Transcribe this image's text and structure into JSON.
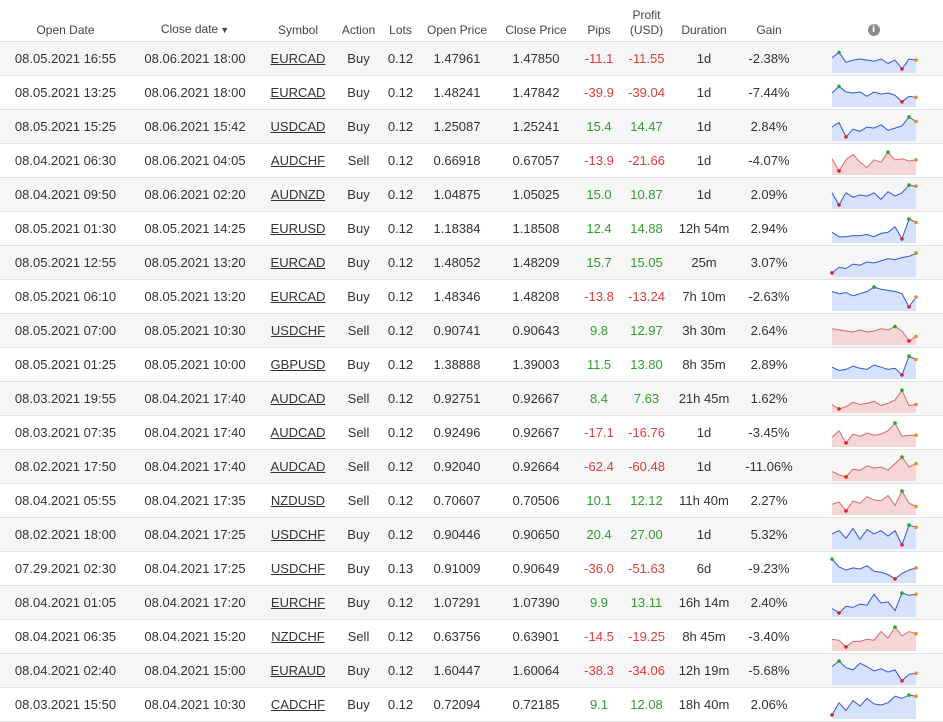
{
  "columns": {
    "open_date": "Open Date",
    "close_date": "Close date",
    "sort_indicator": "▼",
    "symbol": "Symbol",
    "action": "Action",
    "lots": "Lots",
    "open_price": "Open Price",
    "close_price": "Close Price",
    "pips": "Pips",
    "profit_line1": "Profit",
    "profit_line2": "(USD)",
    "duration": "Duration",
    "gain": "Gain",
    "info_glyph": "i"
  },
  "colors": {
    "positive": "#2f9e2f",
    "negative": "#e03b3b",
    "buy_fill": "#d6e1fb",
    "buy_line": "#3355dd",
    "sell_fill": "#f5d6d6",
    "sell_line": "#d96a6a",
    "high_dot": "#22aa22",
    "low_dot": "#dd2222",
    "last_dot": "#f08a24"
  },
  "trades": [
    {
      "open": "08.05.2021 16:55",
      "close": "08.06.2021 18:00",
      "symbol": "EURCAD",
      "action": "Buy",
      "lots": "0.12",
      "open_price": "1.47961",
      "close_price": "1.47850",
      "pips": "-11.1",
      "profit": "-11.55",
      "duration": "1d",
      "gain": "-2.38%",
      "spark": [
        0.55,
        0.8,
        0.35,
        0.45,
        0.5,
        0.45,
        0.4,
        0.5,
        0.3,
        0.45,
        0.05,
        0.5,
        0.45
      ]
    },
    {
      "open": "08.05.2021 13:25",
      "close": "08.06.2021 18:00",
      "symbol": "EURCAD",
      "action": "Buy",
      "lots": "0.12",
      "open_price": "1.48241",
      "close_price": "1.47842",
      "pips": "-39.9",
      "profit": "-39.04",
      "duration": "1d",
      "gain": "-7.44%",
      "spark": [
        0.5,
        0.8,
        0.55,
        0.5,
        0.55,
        0.35,
        0.55,
        0.45,
        0.5,
        0.4,
        0.1,
        0.35,
        0.3
      ]
    },
    {
      "open": "08.05.2021 15:25",
      "close": "08.06.2021 15:42",
      "symbol": "USDCAD",
      "action": "Buy",
      "lots": "0.12",
      "open_price": "1.25087",
      "close_price": "1.25241",
      "pips": "15.4",
      "profit": "14.47",
      "duration": "1d",
      "gain": "2.84%",
      "spark": [
        0.5,
        0.7,
        0.05,
        0.4,
        0.3,
        0.5,
        0.45,
        0.6,
        0.35,
        0.45,
        0.55,
        0.95,
        0.75
      ]
    },
    {
      "open": "08.04.2021 06:30",
      "close": "08.06.2021 04:05",
      "symbol": "AUDCHF",
      "action": "Sell",
      "lots": "0.12",
      "open_price": "0.66918",
      "close_price": "0.67057",
      "pips": "-13.9",
      "profit": "-21.66",
      "duration": "1d",
      "gain": "-4.07%",
      "spark": [
        0.6,
        0.05,
        0.55,
        0.8,
        0.45,
        0.2,
        0.55,
        0.45,
        0.9,
        0.55,
        0.6,
        0.5,
        0.55
      ]
    },
    {
      "open": "08.04.2021 09:50",
      "close": "08.06.2021 02:20",
      "symbol": "AUDNZD",
      "action": "Buy",
      "lots": "0.12",
      "open_price": "1.04875",
      "close_price": "1.05025",
      "pips": "15.0",
      "profit": "10.87",
      "duration": "1d",
      "gain": "2.09%",
      "spark": [
        0.6,
        0.05,
        0.6,
        0.4,
        0.5,
        0.45,
        0.6,
        0.3,
        0.65,
        0.45,
        0.6,
        0.95,
        0.9
      ]
    },
    {
      "open": "08.05.2021 01:30",
      "close": "08.05.2021 14:25",
      "symbol": "EURUSD",
      "action": "Buy",
      "lots": "0.12",
      "open_price": "1.18384",
      "close_price": "1.18508",
      "pips": "12.4",
      "profit": "14.88",
      "duration": "12h 54m",
      "gain": "2.94%",
      "spark": [
        0.35,
        0.15,
        0.15,
        0.2,
        0.2,
        0.25,
        0.15,
        0.3,
        0.35,
        0.6,
        0.05,
        0.95,
        0.8
      ]
    },
    {
      "open": "08.05.2021 12:55",
      "close": "08.05.2021 13:20",
      "symbol": "EURCAD",
      "action": "Buy",
      "lots": "0.12",
      "open_price": "1.48052",
      "close_price": "1.48209",
      "pips": "15.7",
      "profit": "15.05",
      "duration": "25m",
      "gain": "3.07%",
      "spark": [
        0.05,
        0.3,
        0.25,
        0.45,
        0.4,
        0.55,
        0.5,
        0.6,
        0.7,
        0.65,
        0.75,
        0.8,
        0.95
      ]
    },
    {
      "open": "08.05.2021 06:10",
      "close": "08.05.2021 13:20",
      "symbol": "EURCAD",
      "action": "Buy",
      "lots": "0.12",
      "open_price": "1.48346",
      "close_price": "1.48208",
      "pips": "-13.8",
      "profit": "-13.24",
      "duration": "7h 10m",
      "gain": "-2.63%",
      "spark": [
        0.75,
        0.65,
        0.7,
        0.55,
        0.65,
        0.75,
        0.95,
        0.85,
        0.8,
        0.75,
        0.65,
        0.05,
        0.5
      ]
    },
    {
      "open": "08.05.2021 07:00",
      "close": "08.05.2021 10:30",
      "symbol": "USDCHF",
      "action": "Sell",
      "lots": "0.12",
      "open_price": "0.90741",
      "close_price": "0.90643",
      "pips": "9.8",
      "profit": "12.97",
      "duration": "3h 30m",
      "gain": "2.64%",
      "spark": [
        0.6,
        0.55,
        0.5,
        0.45,
        0.55,
        0.45,
        0.5,
        0.6,
        0.55,
        0.7,
        0.5,
        0.05,
        0.25
      ]
    },
    {
      "open": "08.05.2021 01:25",
      "close": "08.05.2021 10:00",
      "symbol": "GBPUSD",
      "action": "Buy",
      "lots": "0.12",
      "open_price": "1.38888",
      "close_price": "1.39003",
      "pips": "11.5",
      "profit": "13.80",
      "duration": "8h 35m",
      "gain": "2.89%",
      "spark": [
        0.4,
        0.25,
        0.3,
        0.45,
        0.35,
        0.3,
        0.5,
        0.4,
        0.3,
        0.35,
        0.05,
        0.9,
        0.75
      ]
    },
    {
      "open": "08.03.2021 19:55",
      "close": "08.04.2021 17:40",
      "symbol": "AUDCAD",
      "action": "Sell",
      "lots": "0.12",
      "open_price": "0.92751",
      "close_price": "0.92667",
      "pips": "8.4",
      "profit": "7.63",
      "duration": "21h 45m",
      "gain": "1.62%",
      "spark": [
        0.25,
        0.05,
        0.15,
        0.35,
        0.25,
        0.3,
        0.4,
        0.2,
        0.3,
        0.45,
        0.9,
        0.2,
        0.25
      ]
    },
    {
      "open": "08.03.2021 07:35",
      "close": "08.04.2021 17:40",
      "symbol": "AUDCAD",
      "action": "Sell",
      "lots": "0.12",
      "open_price": "0.92496",
      "close_price": "0.92667",
      "pips": "-17.1",
      "profit": "-16.76",
      "duration": "1d",
      "gain": "-3.45%",
      "spark": [
        0.3,
        0.6,
        0.05,
        0.45,
        0.35,
        0.5,
        0.4,
        0.45,
        0.6,
        0.95,
        0.35,
        0.4,
        0.4
      ]
    },
    {
      "open": "08.02.2021 17:50",
      "close": "08.04.2021 17:40",
      "symbol": "AUDCAD",
      "action": "Sell",
      "lots": "0.12",
      "open_price": "0.92040",
      "close_price": "0.92664",
      "pips": "-62.4",
      "profit": "-60.48",
      "duration": "1d",
      "gain": "-11.06%",
      "spark": [
        0.3,
        0.15,
        0.05,
        0.4,
        0.35,
        0.55,
        0.45,
        0.5,
        0.35,
        0.65,
        0.95,
        0.5,
        0.65
      ]
    },
    {
      "open": "08.04.2021 05:55",
      "close": "08.04.2021 17:35",
      "symbol": "NZDUSD",
      "action": "Sell",
      "lots": "0.12",
      "open_price": "0.70607",
      "close_price": "0.70506",
      "pips": "10.1",
      "profit": "12.12",
      "duration": "11h 40m",
      "gain": "2.27%",
      "spark": [
        0.35,
        0.45,
        0.05,
        0.5,
        0.4,
        0.7,
        0.55,
        0.5,
        0.75,
        0.3,
        0.95,
        0.4,
        0.25
      ]
    },
    {
      "open": "08.02.2021 18:00",
      "close": "08.04.2021 17:25",
      "symbol": "USDCHF",
      "action": "Buy",
      "lots": "0.12",
      "open_price": "0.90446",
      "close_price": "0.90650",
      "pips": "20.4",
      "profit": "27.00",
      "duration": "1d",
      "gain": "5.32%",
      "spark": [
        0.55,
        0.7,
        0.35,
        0.8,
        0.3,
        0.75,
        0.55,
        0.7,
        0.45,
        0.7,
        0.05,
        0.95,
        0.85
      ]
    },
    {
      "open": "07.29.2021 02:30",
      "close": "08.04.2021 17:25",
      "symbol": "USDCHF",
      "action": "Buy",
      "lots": "0.13",
      "open_price": "0.91009",
      "close_price": "0.90649",
      "pips": "-36.0",
      "profit": "-51.63",
      "duration": "6d",
      "gain": "-9.23%",
      "spark": [
        0.95,
        0.6,
        0.45,
        0.55,
        0.5,
        0.65,
        0.4,
        0.35,
        0.25,
        0.05,
        0.3,
        0.45,
        0.55
      ]
    },
    {
      "open": "08.04.2021 01:05",
      "close": "08.04.2021 17:20",
      "symbol": "EURCHF",
      "action": "Buy",
      "lots": "0.12",
      "open_price": "1.07291",
      "close_price": "1.07390",
      "pips": "9.9",
      "profit": "13.11",
      "duration": "16h 14m",
      "gain": "2.40%",
      "spark": [
        0.25,
        0.05,
        0.35,
        0.3,
        0.45,
        0.4,
        0.9,
        0.5,
        0.55,
        0.15,
        0.95,
        0.85,
        0.9
      ]
    },
    {
      "open": "08.04.2021 06:35",
      "close": "08.04.2021 15:20",
      "symbol": "NZDCHF",
      "action": "Sell",
      "lots": "0.12",
      "open_price": "0.63756",
      "close_price": "0.63901",
      "pips": "-14.5",
      "profit": "-19.25",
      "duration": "8h 45m",
      "gain": "-3.40%",
      "spark": [
        0.4,
        0.35,
        0.05,
        0.3,
        0.3,
        0.4,
        0.35,
        0.75,
        0.45,
        0.95,
        0.55,
        0.75,
        0.65
      ]
    },
    {
      "open": "08.04.2021 02:40",
      "close": "08.04.2021 15:00",
      "symbol": "EURAUD",
      "action": "Buy",
      "lots": "0.12",
      "open_price": "1.60447",
      "close_price": "1.60064",
      "pips": "-38.3",
      "profit": "-34.06",
      "duration": "12h 19m",
      "gain": "-5.68%",
      "spark": [
        0.7,
        0.95,
        0.65,
        0.55,
        0.85,
        0.7,
        0.5,
        0.6,
        0.45,
        0.55,
        0.05,
        0.35,
        0.4
      ]
    },
    {
      "open": "08.03.2021 15:50",
      "close": "08.04.2021 10:30",
      "symbol": "CADCHF",
      "action": "Buy",
      "lots": "0.12",
      "open_price": "0.72094",
      "close_price": "0.72185",
      "pips": "9.1",
      "profit": "12.08",
      "duration": "18h 40m",
      "gain": "2.06%",
      "spark": [
        0.05,
        0.6,
        0.25,
        0.7,
        0.45,
        0.8,
        0.55,
        0.5,
        0.6,
        0.9,
        0.8,
        0.95,
        0.9
      ]
    }
  ]
}
